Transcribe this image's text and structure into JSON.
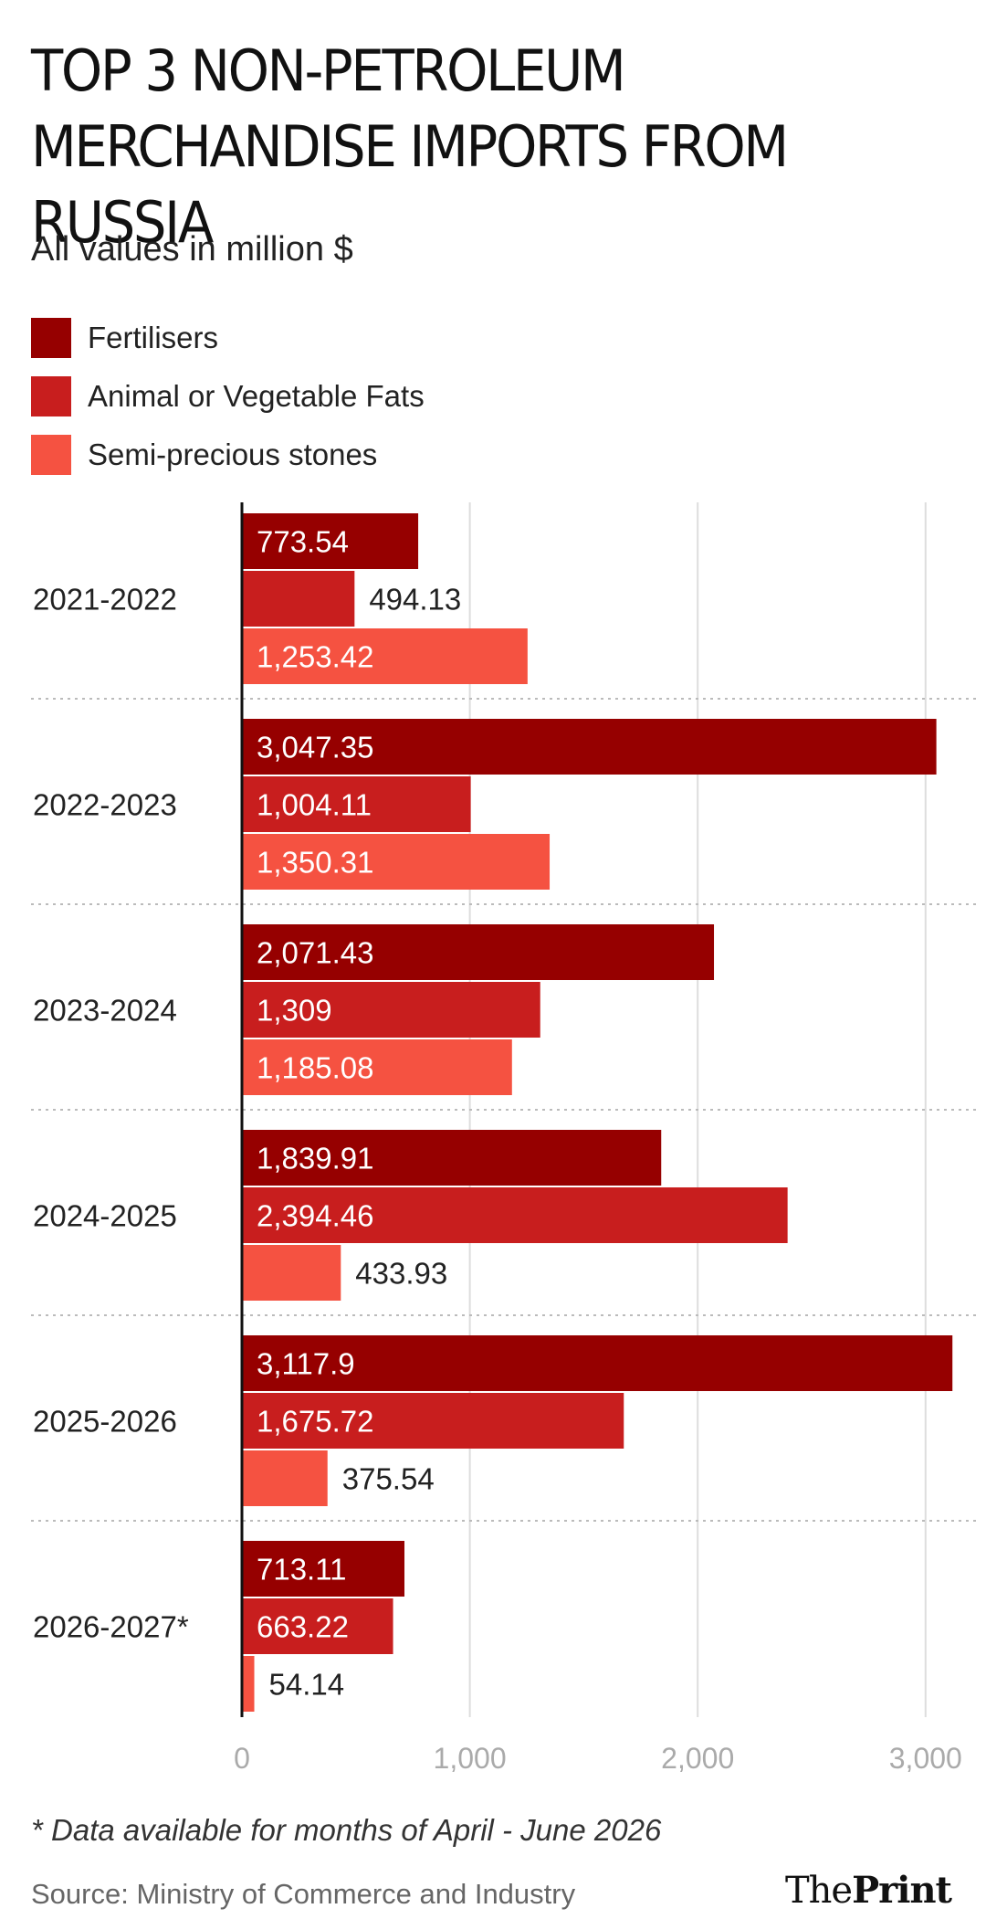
{
  "title": "TOP 3 NON-PETROLEUM MERCHANDISE IMPORTS FROM RUSSIA",
  "subtitle": "All values in million $",
  "footnote": "* Data available for months of April - June 2026",
  "source": "Source: Ministry of Commerce and Industry",
  "logo": {
    "part1": "The",
    "part2": "Print"
  },
  "colors": {
    "Fertilisers": "#960000",
    "Animal or Vegetable Fats": "#c81e1e",
    "Semi-precious stones": "#f55241"
  },
  "chart_data": {
    "type": "bar",
    "orientation": "horizontal",
    "categories": [
      "2021-2022",
      "2022-2023",
      "2023-2024",
      "2024-2025",
      "2025-2026",
      "2026-2027*"
    ],
    "series": [
      {
        "name": "Fertilisers",
        "values": [
          773.54,
          3047.35,
          2071.43,
          1839.91,
          3117.9,
          713.11
        ],
        "labels": [
          "773.54",
          "3,047.35",
          "2,071.43",
          "1,839.91",
          "3,117.9",
          "713.11"
        ]
      },
      {
        "name": "Animal or Vegetable Fats",
        "values": [
          494.13,
          1004.11,
          1309,
          2394.46,
          1675.72,
          663.22
        ],
        "labels": [
          "494.13",
          "1,004.11",
          "1,309",
          "2,394.46",
          "1,675.72",
          "663.22"
        ]
      },
      {
        "name": "Semi-precious stones",
        "values": [
          1253.42,
          1350.31,
          1185.08,
          433.93,
          375.54,
          54.14
        ],
        "labels": [
          "1,253.42",
          "1,350.31",
          "1,185.08",
          "433.93",
          "375.54",
          "54.14"
        ]
      }
    ],
    "x_ticks": [
      0,
      1000,
      2000,
      3000
    ],
    "x_tick_labels": [
      "0",
      "1,000",
      "2,000",
      "3,000"
    ],
    "xlim": [
      0,
      3117.9
    ],
    "grid": true,
    "legend_position": "top-left",
    "xlabel": "",
    "ylabel": ""
  }
}
